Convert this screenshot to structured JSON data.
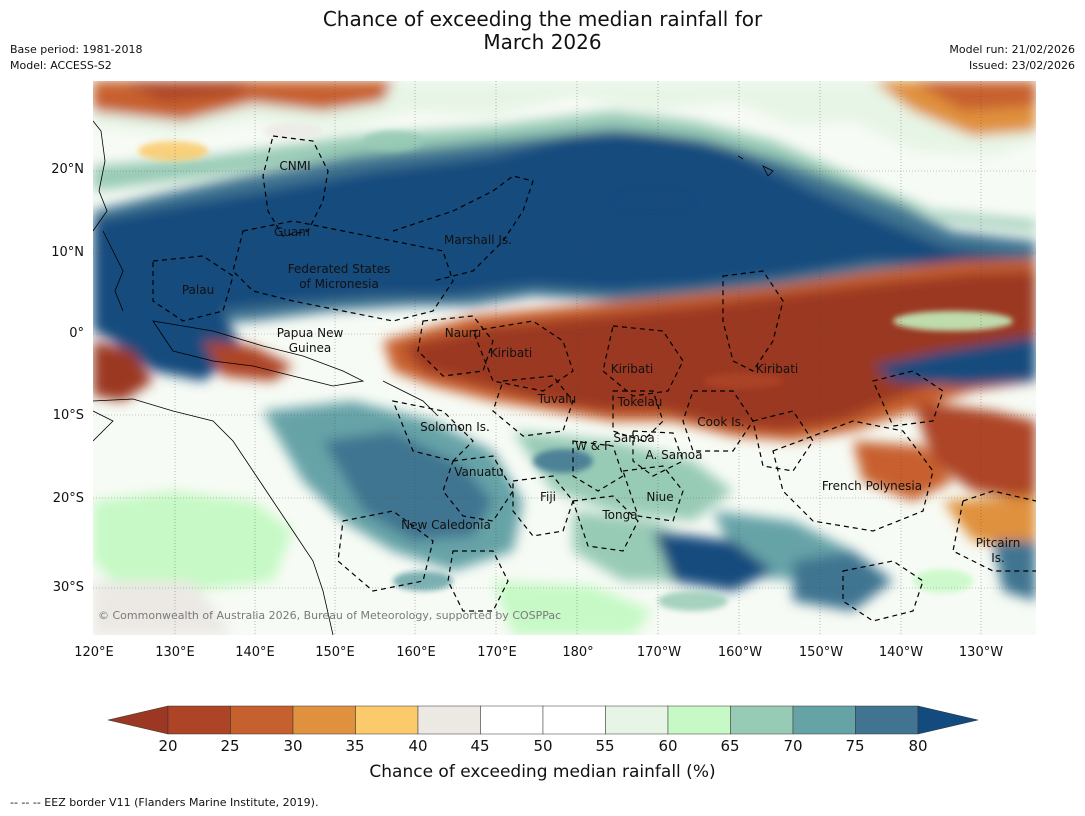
{
  "header": {
    "title_line1": "Chance of exceeding the median rainfall for",
    "title_line2": "March 2026",
    "base_period": "Base period: 1981-2018",
    "model": "Model: ACCESS-S2",
    "model_run": "Model run: 21/02/2026",
    "issued": "Issued: 23/02/2026"
  },
  "map": {
    "lat_labels": [
      "20°N",
      "10°N",
      "0°",
      "10°S",
      "20°S",
      "30°S"
    ],
    "lon_labels": [
      "120°E",
      "130°E",
      "140°E",
      "150°E",
      "160°E",
      "170°E",
      "180°",
      "170°W",
      "160°W",
      "150°W",
      "140°W",
      "130°W"
    ],
    "copyright": "© Commonwealth of Australia 2026, Bureau of Meteorology, supported by COSPPac",
    "regions": {
      "cnmi": "CNMI",
      "guam": "Guam",
      "marshall": "Marshall Is.",
      "fsm_line1": "Federated States",
      "fsm_line2": "of Micronesia",
      "palau": "Palau",
      "png_line1": "Papua New",
      "png_line2": "Guinea",
      "nauru": "Nauru",
      "kiribati_west": "Kiribati",
      "kiribati_central": "Kiribati",
      "kiribati_east": "Kiribati",
      "tuvalu": "Tuvalu",
      "tokelau": "Tokelau",
      "solomon": "Solomon Is.",
      "cook": "Cook Is.",
      "wallis": "W & F",
      "samoa": "Samoa",
      "am_samoa": "A. Samoa",
      "vanuatu": "Vanuatu",
      "fiji": "Fiji",
      "niue": "Niue",
      "tonga": "Tonga",
      "french_polynesia": "French Polynesia",
      "new_caledonia": "New Caledonia",
      "pitcairn_line1": "Pitcairn",
      "pitcairn_line2": "Is."
    }
  },
  "colorbar": {
    "ticks": [
      "20",
      "25",
      "30",
      "35",
      "40",
      "45",
      "50",
      "55",
      "60",
      "65",
      "70",
      "75",
      "80"
    ],
    "title": "Chance of exceeding median rainfall (%)",
    "colors": {
      "below20": "#9b3722",
      "c20_25": "#ad4425",
      "c25_30": "#c7602f",
      "c30_35": "#e0913e",
      "c35_40": "#fbcb6b",
      "c40_45": "#ece9e5",
      "c45_50": "#ffffff",
      "c50_55": "#ffffff",
      "c55_60": "#e7f5e6",
      "c60_65": "#c6f9c5",
      "c65_70": "#98cbb6",
      "c70_75": "#66a3a7",
      "c75_80": "#417491",
      "above80": "#144b7e"
    }
  },
  "footer": {
    "eez_note": "--  --  -- EEZ border V11 (Flanders Marine Institute, 2019)."
  }
}
